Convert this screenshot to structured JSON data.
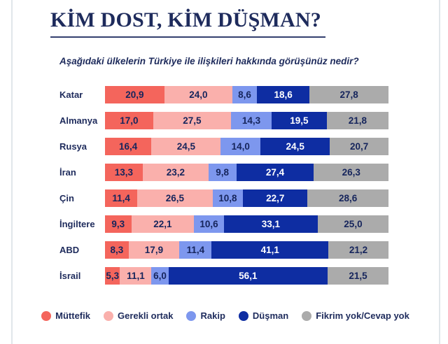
{
  "page": {
    "title": "KİM DOST, KİM DÜŞMAN?",
    "subtitle": "Aşağıdaki ülkelerin Türkiye ile ilişkileri hakkında görüşünüz nedir?"
  },
  "colors": {
    "title_text": "#1e2b5c",
    "bar_value_text": "#16255c",
    "bar_value_text_on_dark": "#ffffff",
    "frame_line": "#e1e6ea"
  },
  "chart_data": {
    "type": "bar",
    "variant": "horizontal-stacked-100",
    "title": "KİM DOST, KİM DÜŞMAN?",
    "subtitle": "Aşağıdaki ülkelerin Türkiye ile ilişkileri hakkında görüşünüz nedir?",
    "xlim": [
      0,
      100
    ],
    "grid": false,
    "legend_position": "bottom",
    "value_format": "comma-decimal-one-place",
    "categories": [
      "Katar",
      "Almanya",
      "Rusya",
      "İran",
      "Çin",
      "İngiltere",
      "ABD",
      "İsrail"
    ],
    "series": [
      {
        "key": "muttefik",
        "name": "Müttefik",
        "color": "#f4655c",
        "text_color": "#16255c",
        "values": [
          20.9,
          17.0,
          16.4,
          13.3,
          11.4,
          9.3,
          8.3,
          5.3
        ],
        "labels": [
          "20,9",
          "17,0",
          "16,4",
          "13,3",
          "11,4",
          "9,3",
          "8,3",
          "5,3"
        ]
      },
      {
        "key": "gerekli-ortak",
        "name": "Gerekli ortak",
        "color": "#fab0ac",
        "text_color": "#16255c",
        "values": [
          24.0,
          27.5,
          24.5,
          23.2,
          26.5,
          22.1,
          17.9,
          11.1
        ],
        "labels": [
          "24,0",
          "27,5",
          "24,5",
          "23,2",
          "26,5",
          "22,1",
          "17,9",
          "11,1"
        ]
      },
      {
        "key": "rakip",
        "name": "Rakip",
        "color": "#7d97ee",
        "text_color": "#16255c",
        "values": [
          8.6,
          14.3,
          14.0,
          9.8,
          10.8,
          10.6,
          11.4,
          6.0
        ],
        "labels": [
          "8,6",
          "14,3",
          "14,0",
          "9,8",
          "10,8",
          "10,6",
          "11,4",
          "6,0"
        ]
      },
      {
        "key": "dusman",
        "name": "Düşman",
        "color": "#0e2da2",
        "text_color": "#ffffff",
        "values": [
          18.6,
          19.5,
          24.5,
          27.4,
          22.7,
          33.1,
          41.1,
          56.1
        ],
        "labels": [
          "18,6",
          "19,5",
          "24,5",
          "27,4",
          "22,7",
          "33,1",
          "41,1",
          "56,1"
        ]
      },
      {
        "key": "fikrim-yok",
        "name": "Fikrim yok/Cevap yok",
        "color": "#ababab",
        "text_color": "#16255c",
        "values": [
          27.8,
          21.8,
          20.7,
          26.3,
          28.6,
          25.0,
          21.2,
          21.5
        ],
        "labels": [
          "27,8",
          "21,8",
          "20,7",
          "26,3",
          "28,6",
          "25,0",
          "21,2",
          "21,5"
        ]
      }
    ]
  }
}
